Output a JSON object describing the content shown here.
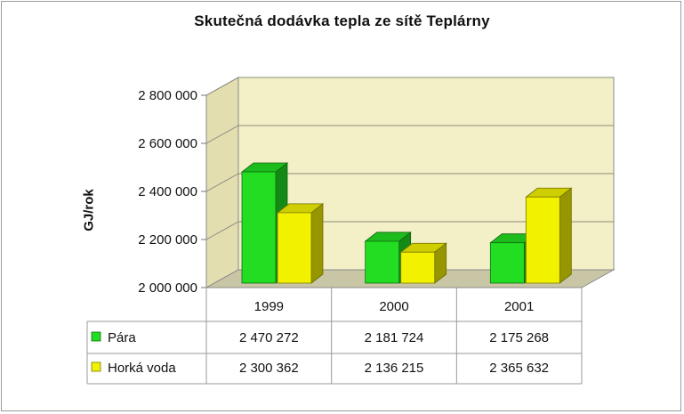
{
  "chart_data": {
    "type": "bar",
    "title": "Skutečná dodávka tepla ze sítě Teplárny",
    "xlabel": "",
    "ylabel": "GJ/rok",
    "categories": [
      "1999",
      "2000",
      "2001"
    ],
    "ylim": [
      2000000,
      2800000
    ],
    "yticks": [
      "2 000 000",
      "2 200 000",
      "2 400 000",
      "2 600 000",
      "2 800 000"
    ],
    "grid": true,
    "legend": "data-table",
    "series": [
      {
        "name": "Pára",
        "values": [
          2470272,
          2181724,
          2175268
        ],
        "labels": [
          "2 470 272",
          "2 181 724",
          "2 175 268"
        ],
        "color": "#22dd22"
      },
      {
        "name": "Horká voda",
        "values": [
          2300362,
          2136215,
          2365632
        ],
        "labels": [
          "2 300 362",
          "2 136 215",
          "2 365 632"
        ],
        "color": "#f2f200"
      }
    ]
  }
}
